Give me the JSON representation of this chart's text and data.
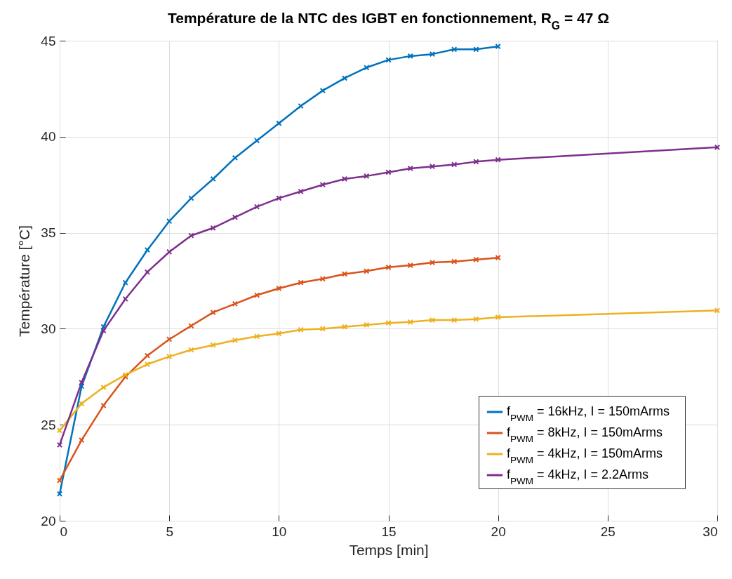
{
  "chart_data": {
    "type": "line",
    "title": "Température de la NTC des IGBT en fonctionnement, R$_{G}$ = 47 Ω",
    "xlabel": "Temps [min]",
    "ylabel": "Température [°C]",
    "x": [
      0,
      1,
      2,
      3,
      4,
      5,
      6,
      7,
      8,
      9,
      10,
      11,
      12,
      13,
      14,
      15,
      16,
      17,
      18,
      19,
      20
    ],
    "series": [
      {
        "name": "f$_{PWM}$ = 16kHz, I = 150mArms",
        "color": "#0072bd",
        "values": [
          21.4,
          27.0,
          30.1,
          32.4,
          34.1,
          35.6,
          36.8,
          37.8,
          38.9,
          39.8,
          40.7,
          41.6,
          42.4,
          43.05,
          43.6,
          44.0,
          44.2,
          44.3,
          44.55,
          44.55,
          44.7
        ]
      },
      {
        "name": "f$_{PWM}$ = 8kHz, I = 150mArms",
        "color": "#d95319",
        "values": [
          22.1,
          24.2,
          26.0,
          27.5,
          28.6,
          29.45,
          30.15,
          30.85,
          31.3,
          31.75,
          32.1,
          32.4,
          32.6,
          32.85,
          33.0,
          33.2,
          33.3,
          33.45,
          33.5,
          33.6,
          33.7
        ]
      },
      {
        "name": "f$_{PWM}$ = 4kHz, I = 150mArms",
        "color": "#edb120",
        "x": [
          0,
          1,
          2,
          3,
          4,
          5,
          6,
          7,
          8,
          9,
          10,
          11,
          12,
          13,
          14,
          15,
          16,
          17,
          18,
          19,
          20,
          30
        ],
        "values": [
          24.7,
          26.1,
          26.95,
          27.6,
          28.15,
          28.55,
          28.9,
          29.15,
          29.4,
          29.6,
          29.75,
          29.95,
          30.0,
          30.1,
          30.2,
          30.3,
          30.35,
          30.45,
          30.45,
          30.5,
          30.6,
          30.95
        ]
      },
      {
        "name": "f$_{PWM}$ = 4kHz, I = 2.2Arms",
        "color": "#7e2f8e",
        "x": [
          0,
          1,
          2,
          3,
          4,
          5,
          6,
          7,
          8,
          9,
          10,
          11,
          12,
          13,
          14,
          15,
          16,
          17,
          18,
          19,
          20,
          30
        ],
        "values": [
          23.95,
          27.2,
          29.9,
          31.55,
          32.95,
          34.0,
          34.85,
          35.25,
          35.8,
          36.35,
          36.8,
          37.15,
          37.5,
          37.8,
          37.95,
          38.15,
          38.35,
          38.45,
          38.55,
          38.7,
          38.8,
          39.45
        ]
      }
    ],
    "xlim": [
      0,
      30
    ],
    "xticks": [
      0,
      5,
      10,
      15,
      20,
      25,
      30
    ],
    "ylim": [
      20,
      45
    ],
    "yticks": [
      20,
      25,
      30,
      35,
      40,
      45
    ],
    "grid": true,
    "legend": "bottom right",
    "marker": "cross",
    "line_style": "solid"
  }
}
